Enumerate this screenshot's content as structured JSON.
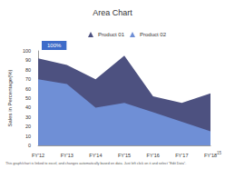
{
  "chart_data": {
    "type": "area",
    "title": "Area Chart",
    "y_label": "Sales in Percentage(%)",
    "annotation": "100%",
    "footer": "This graph/chart is linked to excel, and changes automatically based on data. Just left click on it and select \"Edit Data\".",
    "page_number": "15",
    "categories": [
      "FY'12",
      "FY'13",
      "FY'14",
      "FY'15",
      "FY'16",
      "FY'17",
      "FY'18"
    ],
    "series": [
      {
        "name": "Product 01",
        "color": "#4d5180",
        "values": [
          92,
          85,
          70,
          95,
          52,
          45,
          55
        ]
      },
      {
        "name": "Product 02",
        "color": "#6f8fd6",
        "values": [
          70,
          65,
          40,
          45,
          35,
          25,
          15
        ]
      }
    ],
    "ylim": [
      0,
      100
    ],
    "yticks": [
      0,
      10,
      20,
      30,
      40,
      50,
      60,
      70,
      80,
      90,
      100
    ],
    "grid": false,
    "legend": "top"
  }
}
